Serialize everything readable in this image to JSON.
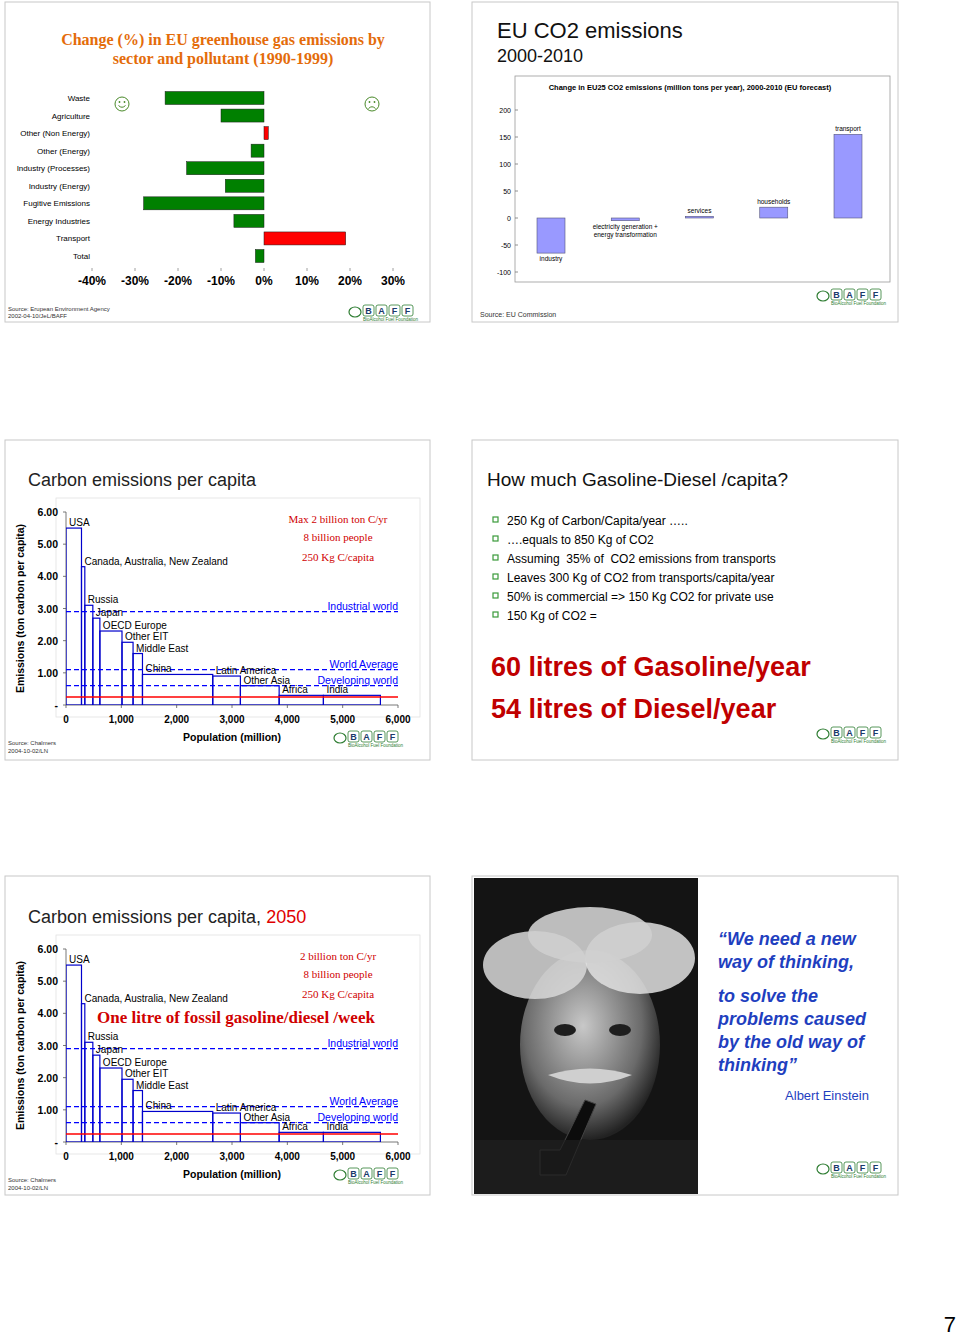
{
  "chart_data": [
    {
      "type": "bar",
      "orientation": "horizontal",
      "title": "Change (%) in EU greenhouse gas emissions by sector and pollutant (1990-1999)",
      "categories": [
        "Waste",
        "Agriculture",
        "Other (Non Energy)",
        "Other (Energy)",
        "Industry (Processes)",
        "Industry (Energy)",
        "Fugitive Emissions",
        "Energy Industries",
        "Transport",
        "Total"
      ],
      "values": [
        -23,
        -10,
        1,
        -3,
        -18,
        -9,
        -28,
        -7,
        19,
        -2
      ],
      "colors": [
        "#008000",
        "#008000",
        "#ff0000",
        "#008000",
        "#008000",
        "#008000",
        "#008000",
        "#008000",
        "#ff0000",
        "#008000"
      ],
      "xlim": [
        -40,
        30
      ],
      "xticks": [
        {
          "value": -40,
          "label": "-40%"
        },
        {
          "value": -30,
          "label": "-30%"
        },
        {
          "value": -20,
          "label": "-20%"
        },
        {
          "value": -10,
          "label": "-10%"
        },
        {
          "value": 0,
          "label": "0%"
        },
        {
          "value": 10,
          "label": "10%"
        },
        {
          "value": 20,
          "label": "20%"
        },
        {
          "value": 30,
          "label": "30%"
        }
      ],
      "source": [
        "Source: Erupean Environment Agency",
        "2002-04-10/JeL/BAFF"
      ]
    },
    {
      "type": "bar",
      "title": "EU CO2 emissions",
      "subtitle": "2000-2010",
      "chart_title": "Change in EU25 CO2 emissions (million tons per year), 2000-2010 (EU forecast)",
      "categories": [
        "industry",
        "electricity generation + energy transformation",
        "services",
        "households",
        "transport"
      ],
      "values": [
        -65,
        -5,
        3,
        20,
        155
      ],
      "color": "#9999ff",
      "ylim": [
        -100,
        200
      ],
      "yticks": [
        -100,
        -50,
        0,
        50,
        100,
        150,
        200
      ],
      "source": "Source: EU Commission"
    },
    {
      "type": "bar",
      "title": "Carbon emissions per capita",
      "categories": [
        "USA",
        "Canada, Australia, New Zealand",
        "Russia",
        "Japan",
        "OECD Europe",
        "Other EIT",
        "Middle East",
        "China",
        "Latin America",
        "Other Asia",
        "Africa",
        "India"
      ],
      "widths": [
        280,
        60,
        145,
        127,
        400,
        200,
        170,
        1270,
        500,
        700,
        800,
        1030
      ],
      "values": [
        5.5,
        4.3,
        3.1,
        2.7,
        2.3,
        1.95,
        1.6,
        0.95,
        0.9,
        0.6,
        0.3,
        0.3
      ],
      "color": "#0000cc",
      "xlim": [
        0,
        6000
      ],
      "xticks": [
        0,
        {
          "value": 1000,
          "label": "1,000"
        },
        {
          "value": 2000,
          "label": "2,000"
        },
        {
          "value": 3000,
          "label": "3,000"
        },
        {
          "value": 4000,
          "label": "4,000"
        },
        {
          "value": 5000,
          "label": "5,000"
        },
        {
          "value": 6000,
          "label": "6,000"
        }
      ],
      "ylim": [
        0,
        6
      ],
      "yticks": [
        {
          "value": 0,
          "label": "-"
        },
        {
          "value": 1,
          "label": "1.00"
        },
        {
          "value": 2,
          "label": "2.00"
        },
        {
          "value": 3,
          "label": "3.00"
        },
        {
          "value": 4,
          "label": "4.00"
        },
        {
          "value": 5,
          "label": "5.00"
        },
        {
          "value": 6,
          "label": "6.00"
        }
      ],
      "x_label": "Population (million)",
      "y_label": "Emissions (ton carbon per capita)",
      "reference_lines": [
        {
          "label": "Industrial world",
          "value": 2.9,
          "color": "#0000ff",
          "line_style": "dashed"
        },
        {
          "label": "World Average",
          "value": 1.1,
          "color": "#0000ff",
          "line_style": "dashed"
        },
        {
          "label": "Developing world",
          "value": 0.6,
          "color": "#0000ff",
          "line_style": "dashed"
        },
        {
          "value": 0.25,
          "color": "#ff0000",
          "line_style": "solid"
        }
      ],
      "annotations": [
        "Max 2 billion ton C/yr",
        "8 billion people",
        "250 Kg C/capita"
      ],
      "source": [
        "Source: Chalmers",
        "2004-10-02/LN"
      ]
    },
    {
      "type": "bar",
      "title": "Carbon emissions per capita,",
      "title_year": "2050",
      "categories": [
        "USA",
        "Canada, Australia, New Zealand",
        "Russia",
        "Japan",
        "OECD Europe",
        "Other EIT",
        "Middle East",
        "China",
        "Latin America",
        "Other Asia",
        "Africa",
        "India"
      ],
      "widths": [
        280,
        60,
        145,
        127,
        400,
        200,
        170,
        1270,
        500,
        700,
        800,
        1030
      ],
      "values": [
        5.5,
        4.3,
        3.1,
        2.7,
        2.3,
        1.95,
        1.6,
        0.95,
        0.9,
        0.6,
        0.3,
        0.3
      ],
      "color": "#0000cc",
      "xlim": [
        0,
        6000
      ],
      "xticks": [
        0,
        {
          "value": 1000,
          "label": "1,000"
        },
        {
          "value": 2000,
          "label": "2,000"
        },
        {
          "value": 3000,
          "label": "3,000"
        },
        {
          "value": 4000,
          "label": "4,000"
        },
        {
          "value": 5000,
          "label": "5,000"
        },
        {
          "value": 6000,
          "label": "6,000"
        }
      ],
      "ylim": [
        0,
        6
      ],
      "yticks": [
        {
          "value": 0,
          "label": "-"
        },
        {
          "value": 1,
          "label": "1.00"
        },
        {
          "value": 2,
          "label": "2.00"
        },
        {
          "value": 3,
          "label": "3.00"
        },
        {
          "value": 4,
          "label": "4.00"
        },
        {
          "value": 5,
          "label": "5.00"
        },
        {
          "value": 6,
          "label": "6.00"
        }
      ],
      "x_label": "Population (million)",
      "y_label": "Emissions (ton carbon per capita)",
      "reference_lines": [
        {
          "label": "Industrial world",
          "value": 2.9,
          "color": "#0000ff",
          "line_style": "dashed"
        },
        {
          "label": "World Average",
          "value": 1.1,
          "color": "#0000ff",
          "line_style": "dashed"
        },
        {
          "label": "Developing world",
          "value": 0.6,
          "color": "#0000ff",
          "line_style": "dashed"
        },
        {
          "value": 0.25,
          "color": "#ff0000",
          "line_style": "solid"
        }
      ],
      "annotations": [
        "2 billion ton C/yr",
        "8 billion people",
        "250 Kg C/capita",
        "One litre of fossil gasoline/diesel /week"
      ],
      "source": [
        "Source: Chalmers",
        "2004-10-02/LN"
      ]
    }
  ],
  "page": {
    "logo": {
      "letters": [
        "B",
        "A",
        "F",
        "F"
      ],
      "name": "BioAlcohol Fuel Foundation"
    },
    "gasoline_slide": {
      "title": "How much Gasoline-Diesel /capita?",
      "bullets": [
        "250 Kg of Carbon/Capita/year …..",
        "….equals to 850 Kg of CO2",
        "Assuming  35% of  CO2 emissions from transports",
        "Leaves 300 Kg of CO2 from transports/capita/year",
        "50% is commercial => 150 Kg CO2 for private use",
        "150 Kg of CO2 ="
      ],
      "highlights": [
        "60 litres of Gasoline/year",
        "54 litres of Diesel/year"
      ]
    },
    "quote_slide": {
      "quote": [
        [
          "“We need a new",
          "way of thinking,"
        ],
        [
          "to solve the",
          "problems caused",
          "by the old way of",
          "thinking”"
        ]
      ],
      "author": "Albert Einstein"
    },
    "page_number": 7
  }
}
